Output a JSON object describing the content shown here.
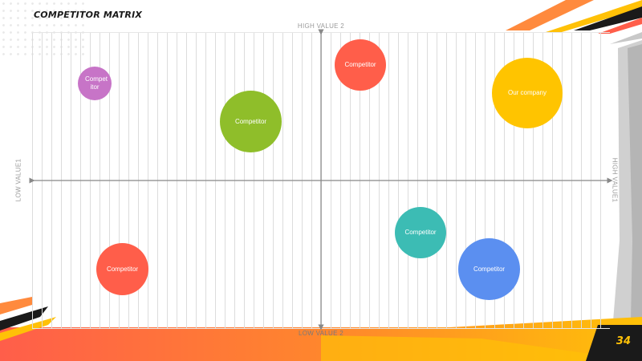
{
  "slide": {
    "title": "COMPETITOR MATRIX",
    "page_number": "34"
  },
  "axes": {
    "top": "HIGH VALUE 2",
    "bottom": "LOW VALUE 2",
    "left": "LOW VALUE1",
    "right": "HIGH VALUE1"
  },
  "bubbles": [
    {
      "label": "Compet itor",
      "color": "#c774c7"
    },
    {
      "label": "Competitor",
      "color": "#ff5e4a"
    },
    {
      "label": "Competitor",
      "color": "#8fbe2a"
    },
    {
      "label": "Our company",
      "color": "#ffc400"
    },
    {
      "label": "Competitor",
      "color": "#3cbcb4"
    },
    {
      "label": "Competitor",
      "color": "#ff5e4a"
    },
    {
      "label": "Competitor",
      "color": "#5b8ff0"
    }
  ],
  "colors": {
    "accent_orange": "#ff5e4a",
    "accent_yellow": "#ffc107",
    "dark": "#1a1a1a"
  }
}
